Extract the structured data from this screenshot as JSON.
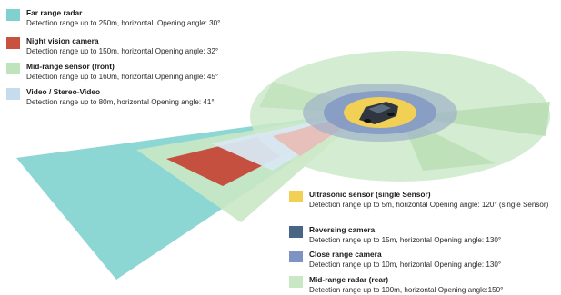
{
  "colors": {
    "far_range_radar": "#86d4d2",
    "night_vision_camera": "#c6503f",
    "mid_range_sensor_front": "#bfe3bc",
    "video_stereo": "#cfe0ee",
    "ultrasonic": "#f2cf55",
    "reversing_camera": "#486585",
    "close_range_camera": "#7c93c4",
    "mid_range_radar_rear": "#c8e8c4"
  },
  "legend_left": [
    {
      "title": "Far range radar",
      "desc": "Detection range up to 250m, horizontal. Opening angle: 30°",
      "color": "#7fd0cf"
    },
    {
      "title": "Night vision camera",
      "desc": "Detection range up to 150m, horizontal Opening angle: 32°",
      "color": "#c8513f"
    },
    {
      "title": "Mid-range sensor (front)",
      "desc": "Detection range up to 160m, horizontal Opening angle: 45°",
      "color": "#bfe3bc"
    },
    {
      "title": "Video / Stereo-Video",
      "desc": "Detection range up to 80m, horizontal Opening angle:  41°",
      "color": "#c5dcee"
    }
  ],
  "legend_right": [
    {
      "title": "Ultrasonic sensor (single Sensor)",
      "desc": "Detection range up to 5m, horizontal Opening angle: 120° (single Sensor)",
      "color": "#f2cf55"
    },
    {
      "title": "Reversing camera",
      "desc": "Detection range up to 15m, horizontal Opening angle: 130°",
      "color": "#486585"
    },
    {
      "title": "Close range camera",
      "desc": "Detection range up to 10m, horizontal Opening angle: 130°",
      "color": "#7c93c4"
    },
    {
      "title": "Mid-range radar (rear)",
      "desc": "Detection range up to 100m, horizontal Opening angle:150°",
      "color": "#c8e8c4"
    }
  ]
}
